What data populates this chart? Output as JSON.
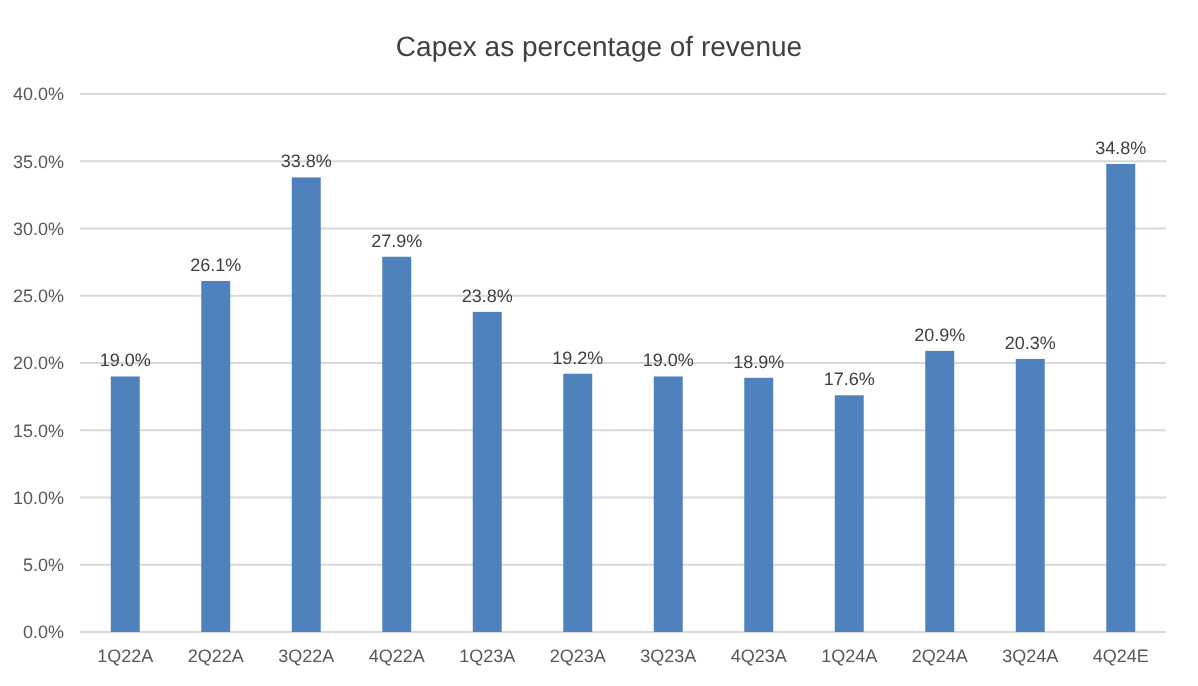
{
  "chart_data": {
    "type": "bar",
    "title": "Capex as percentage of revenue",
    "categories": [
      "1Q22A",
      "2Q22A",
      "3Q22A",
      "4Q22A",
      "1Q23A",
      "2Q23A",
      "3Q23A",
      "4Q23A",
      "1Q24A",
      "2Q24A",
      "3Q24A",
      "4Q24E"
    ],
    "values": [
      19.0,
      26.1,
      33.8,
      27.9,
      23.8,
      19.2,
      19.0,
      18.9,
      17.6,
      20.9,
      20.3,
      34.8
    ],
    "value_labels": [
      "19.0%",
      "26.1%",
      "33.8%",
      "27.9%",
      "23.8%",
      "19.2%",
      "19.0%",
      "18.9%",
      "17.6%",
      "20.9%",
      "20.3%",
      "34.8%"
    ],
    "color": "#4f81bd",
    "ylim": [
      0,
      40
    ],
    "yticks": [
      {
        "value": 0,
        "label": "0.0%"
      },
      {
        "value": 5,
        "label": "5.0%"
      },
      {
        "value": 10,
        "label": "10.0%"
      },
      {
        "value": 15,
        "label": "15.0%"
      },
      {
        "value": 20,
        "label": "20.0%"
      },
      {
        "value": 25,
        "label": "25.0%"
      },
      {
        "value": 30,
        "label": "30.0%"
      },
      {
        "value": 35,
        "label": "35.0%"
      },
      {
        "value": 40,
        "label": "40.0%"
      }
    ],
    "grid": "y"
  }
}
